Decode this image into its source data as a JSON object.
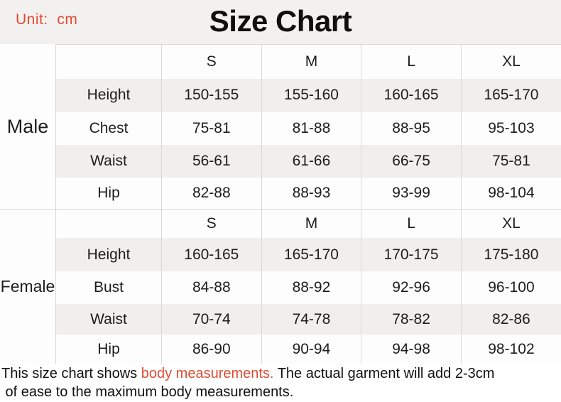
{
  "header": {
    "unit": "Unit:  cm",
    "title": "Size Chart"
  },
  "colors": {
    "accent_red": "#E14A33",
    "row_alt": "#F0EFED",
    "border": "#DAD8D5",
    "page_bg": "#F2F1EF",
    "cell_bg": "#FDFDFD",
    "footer_bg": "#FFFFFF",
    "text": "#1D1D1D"
  },
  "sections": [
    {
      "gender": "Male",
      "sizes": [
        "S",
        "M",
        "L",
        "XL"
      ],
      "rows": [
        {
          "label": "Height",
          "values": [
            "150-155",
            "155-160",
            "160-165",
            "165-170"
          ]
        },
        {
          "label": "Chest",
          "values": [
            "75-81",
            "81-88",
            "88-95",
            "95-103"
          ]
        },
        {
          "label": "Waist",
          "values": [
            "56-61",
            "61-66",
            "66-75",
            "75-81"
          ]
        },
        {
          "label": "Hip",
          "values": [
            "82-88",
            "88-93",
            "93-99",
            "98-104"
          ]
        }
      ]
    },
    {
      "gender": "Female",
      "sizes": [
        "S",
        "M",
        "L",
        "XL"
      ],
      "rows": [
        {
          "label": "Height",
          "values": [
            "160-165",
            "165-170",
            "170-175",
            "175-180"
          ]
        },
        {
          "label": "Bust",
          "values": [
            "84-88",
            "88-92",
            "92-96",
            "96-100"
          ]
        },
        {
          "label": "Waist",
          "values": [
            "70-74",
            "74-78",
            "78-82",
            "82-86"
          ]
        },
        {
          "label": "Hip",
          "values": [
            "86-90",
            "90-94",
            "94-98",
            "98-102"
          ]
        }
      ]
    }
  ],
  "footnote": {
    "lines": [
      [
        {
          "text": "This size chart shows ",
          "red": false
        },
        {
          "text": "body measurements.",
          "red": true
        },
        {
          "text": " The actual garment will add 2-3cm",
          "red": false
        }
      ],
      [
        {
          "text": " of ease to the maximum body measurements.",
          "red": false
        }
      ]
    ]
  },
  "chart_data": [
    {
      "type": "table",
      "title": "Size Chart",
      "unit": "cm",
      "section": "Male",
      "columns": [
        "",
        "S",
        "M",
        "L",
        "XL"
      ],
      "rows": [
        [
          "Height",
          "150-155",
          "155-160",
          "160-165",
          "165-170"
        ],
        [
          "Chest",
          "75-81",
          "81-88",
          "88-95",
          "95-103"
        ],
        [
          "Waist",
          "56-61",
          "61-66",
          "66-75",
          "75-81"
        ],
        [
          "Hip",
          "82-88",
          "88-93",
          "93-99",
          "98-104"
        ]
      ]
    },
    {
      "type": "table",
      "title": "Size Chart",
      "unit": "cm",
      "section": "Female",
      "columns": [
        "",
        "S",
        "M",
        "L",
        "XL"
      ],
      "rows": [
        [
          "Height",
          "160-165",
          "165-170",
          "170-175",
          "175-180"
        ],
        [
          "Bust",
          "84-88",
          "88-92",
          "92-96",
          "96-100"
        ],
        [
          "Waist",
          "70-74",
          "74-78",
          "78-82",
          "82-86"
        ],
        [
          "Hip",
          "86-90",
          "90-94",
          "94-98",
          "98-102"
        ]
      ]
    }
  ]
}
